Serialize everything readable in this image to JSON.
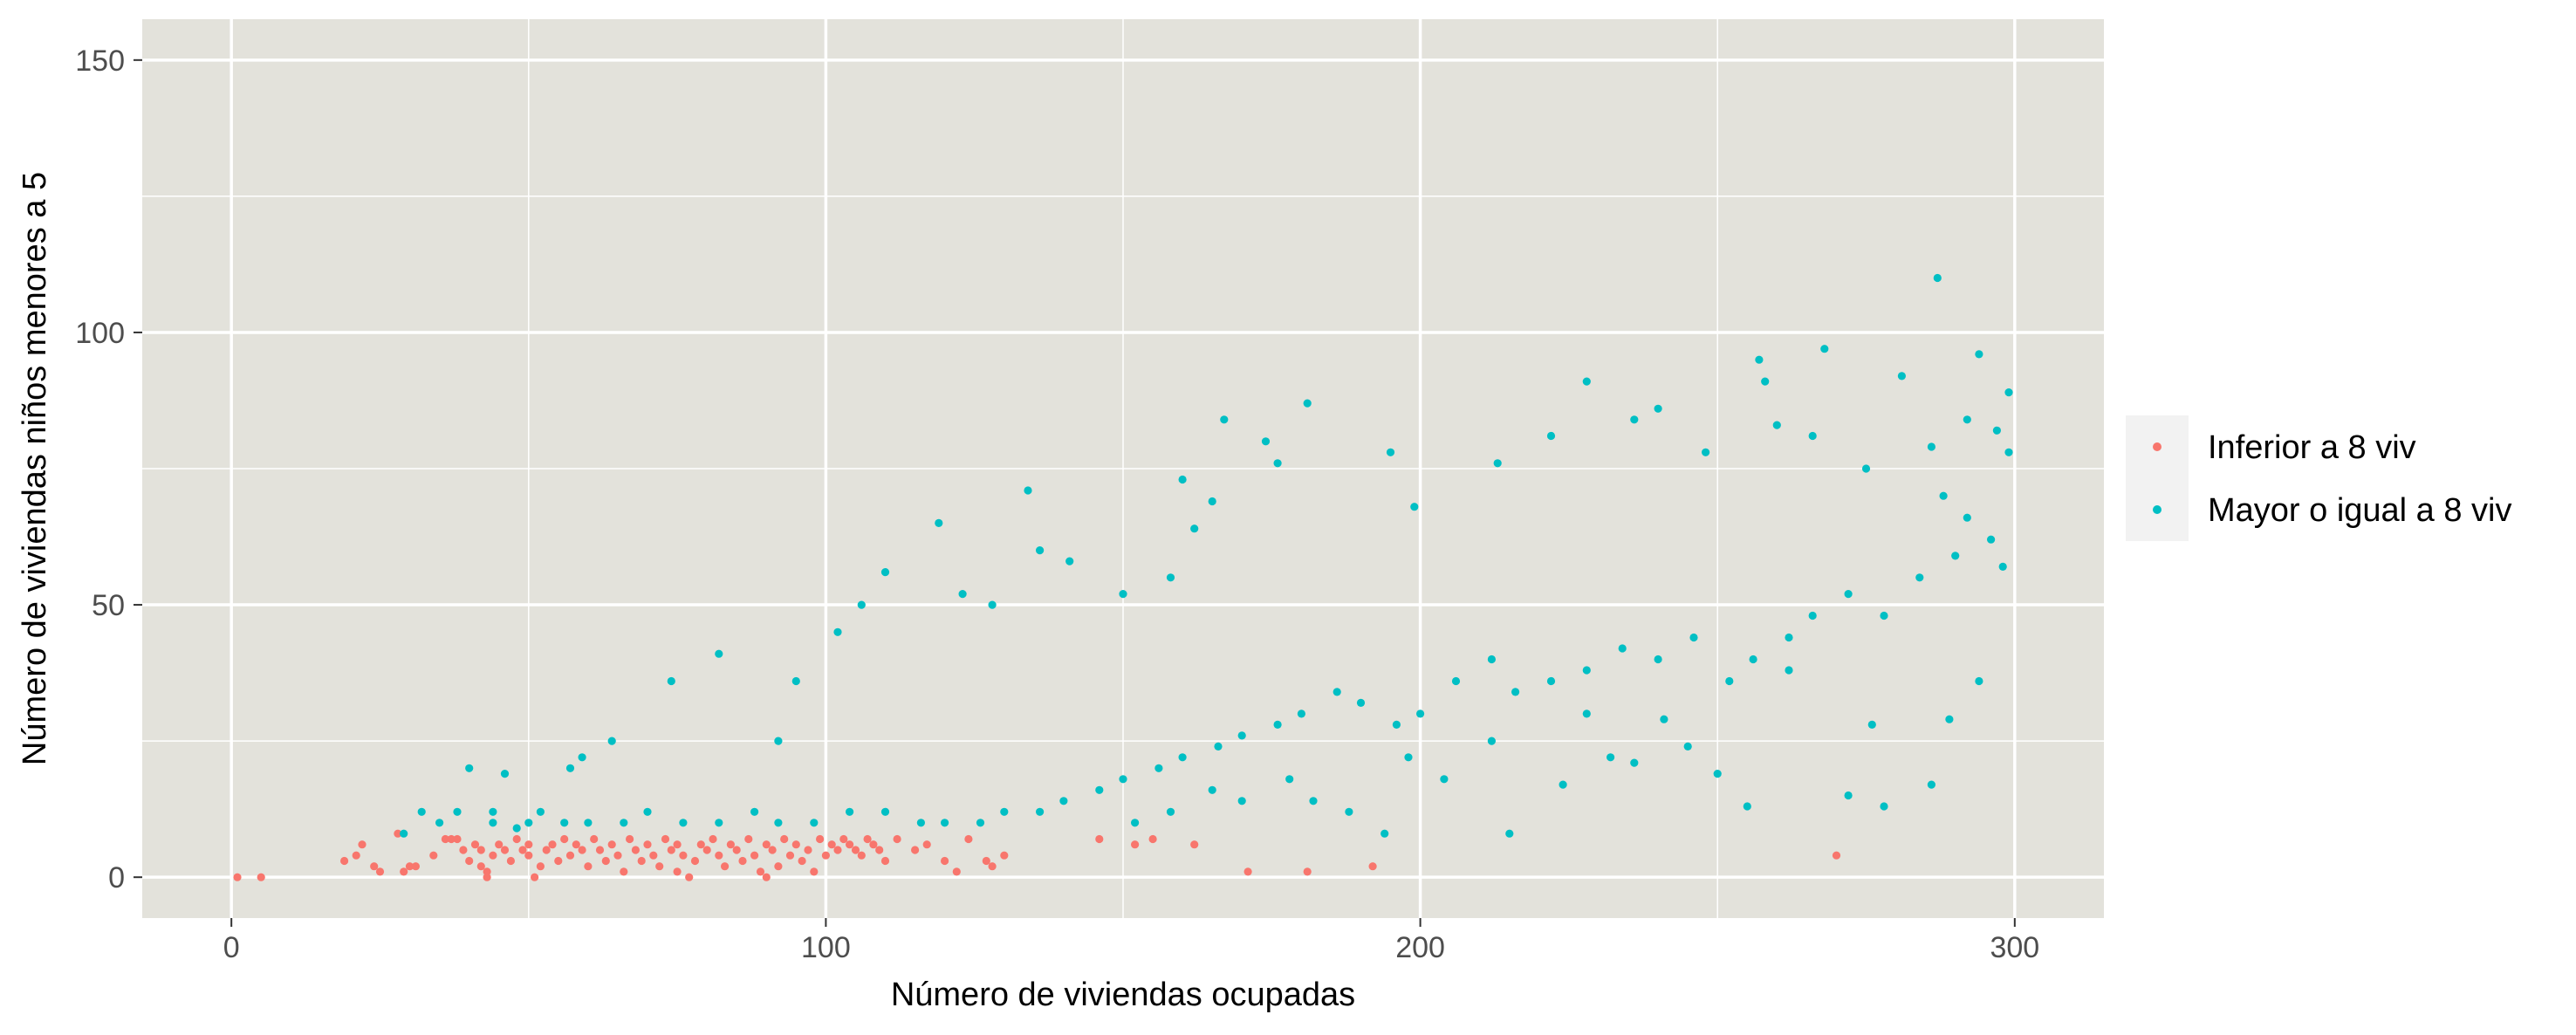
{
  "chart_data": {
    "type": "scatter",
    "title": "",
    "xlabel": "Número de viviendas ocupadas",
    "ylabel": "Número de viviendas niños menores a 5",
    "xlim": [
      -15,
      315
    ],
    "ylim": [
      -7.5,
      157.5
    ],
    "x_ticks": [
      0,
      100,
      200,
      300
    ],
    "y_ticks": [
      0,
      50,
      100,
      150
    ],
    "x_tick_labels": [
      "0",
      "100",
      "200",
      "300"
    ],
    "y_tick_labels": [
      "0",
      "50",
      "100",
      "150"
    ],
    "grid": true,
    "panel_background": "#e3e2db",
    "grid_color": "#ffffff",
    "legend_position": "right",
    "series": [
      {
        "name": "Inferior a 8 viv",
        "color": "#f8766d",
        "points": [
          [
            1,
            0
          ],
          [
            5,
            0
          ],
          [
            19,
            3
          ],
          [
            21,
            4
          ],
          [
            22,
            6
          ],
          [
            24,
            2
          ],
          [
            25,
            1
          ],
          [
            28,
            8
          ],
          [
            29,
            1
          ],
          [
            30,
            2
          ],
          [
            31,
            2
          ],
          [
            34,
            4
          ],
          [
            36,
            7
          ],
          [
            37,
            7
          ],
          [
            38,
            7
          ],
          [
            39,
            5
          ],
          [
            40,
            3
          ],
          [
            41,
            6
          ],
          [
            42,
            5
          ],
          [
            42,
            2
          ],
          [
            43,
            0
          ],
          [
            43,
            1
          ],
          [
            44,
            4
          ],
          [
            45,
            6
          ],
          [
            46,
            5
          ],
          [
            47,
            3
          ],
          [
            48,
            7
          ],
          [
            49,
            5
          ],
          [
            50,
            4
          ],
          [
            50,
            6
          ],
          [
            51,
            0
          ],
          [
            52,
            2
          ],
          [
            53,
            5
          ],
          [
            54,
            6
          ],
          [
            55,
            3
          ],
          [
            56,
            7
          ],
          [
            57,
            4
          ],
          [
            58,
            6
          ],
          [
            59,
            5
          ],
          [
            60,
            2
          ],
          [
            61,
            7
          ],
          [
            62,
            5
          ],
          [
            63,
            3
          ],
          [
            64,
            6
          ],
          [
            65,
            4
          ],
          [
            66,
            1
          ],
          [
            67,
            7
          ],
          [
            68,
            5
          ],
          [
            69,
            3
          ],
          [
            70,
            6
          ],
          [
            71,
            4
          ],
          [
            72,
            2
          ],
          [
            73,
            7
          ],
          [
            74,
            5
          ],
          [
            75,
            1
          ],
          [
            75,
            6
          ],
          [
            76,
            4
          ],
          [
            77,
            0
          ],
          [
            78,
            3
          ],
          [
            79,
            6
          ],
          [
            80,
            5
          ],
          [
            81,
            7
          ],
          [
            82,
            4
          ],
          [
            83,
            2
          ],
          [
            84,
            6
          ],
          [
            85,
            5
          ],
          [
            86,
            3
          ],
          [
            87,
            7
          ],
          [
            88,
            4
          ],
          [
            89,
            1
          ],
          [
            90,
            0
          ],
          [
            90,
            6
          ],
          [
            91,
            5
          ],
          [
            92,
            2
          ],
          [
            93,
            7
          ],
          [
            94,
            4
          ],
          [
            95,
            6
          ],
          [
            96,
            3
          ],
          [
            97,
            5
          ],
          [
            98,
            1
          ],
          [
            99,
            7
          ],
          [
            100,
            4
          ],
          [
            101,
            6
          ],
          [
            102,
            5
          ],
          [
            103,
            7
          ],
          [
            104,
            6
          ],
          [
            105,
            5
          ],
          [
            106,
            4
          ],
          [
            107,
            7
          ],
          [
            108,
            6
          ],
          [
            109,
            5
          ],
          [
            110,
            3
          ],
          [
            112,
            7
          ],
          [
            115,
            5
          ],
          [
            117,
            6
          ],
          [
            120,
            3
          ],
          [
            122,
            1
          ],
          [
            124,
            7
          ],
          [
            127,
            3
          ],
          [
            128,
            2
          ],
          [
            130,
            4
          ],
          [
            146,
            7
          ],
          [
            152,
            6
          ],
          [
            155,
            7
          ],
          [
            162,
            6
          ],
          [
            171,
            1
          ],
          [
            181,
            1
          ],
          [
            192,
            2
          ],
          [
            270,
            4
          ]
        ]
      },
      {
        "name": "Mayor o igual a 8 viv",
        "color": "#00bfc4",
        "points": [
          [
            29,
            8
          ],
          [
            32,
            12
          ],
          [
            35,
            10
          ],
          [
            38,
            12
          ],
          [
            40,
            20
          ],
          [
            44,
            12
          ],
          [
            46,
            19
          ],
          [
            48,
            9
          ],
          [
            52,
            12
          ],
          [
            57,
            20
          ],
          [
            59,
            22
          ],
          [
            64,
            25
          ],
          [
            74,
            36
          ],
          [
            82,
            41
          ],
          [
            92,
            25
          ],
          [
            95,
            36
          ],
          [
            102,
            45
          ],
          [
            106,
            50
          ],
          [
            110,
            56
          ],
          [
            119,
            65
          ],
          [
            123,
            52
          ],
          [
            128,
            50
          ],
          [
            134,
            71
          ],
          [
            136,
            60
          ],
          [
            141,
            58
          ],
          [
            150,
            52
          ],
          [
            158,
            55
          ],
          [
            160,
            73
          ],
          [
            162,
            64
          ],
          [
            165,
            69
          ],
          [
            167,
            84
          ],
          [
            174,
            80
          ],
          [
            176,
            76
          ],
          [
            181,
            87
          ],
          [
            195,
            78
          ],
          [
            199,
            68
          ],
          [
            213,
            76
          ],
          [
            222,
            81
          ],
          [
            228,
            91
          ],
          [
            236,
            84
          ],
          [
            240,
            86
          ],
          [
            248,
            78
          ],
          [
            257,
            95
          ],
          [
            258,
            91
          ],
          [
            260,
            83
          ],
          [
            266,
            81
          ],
          [
            268,
            97
          ],
          [
            275,
            75
          ],
          [
            281,
            92
          ],
          [
            286,
            79
          ],
          [
            287,
            110
          ],
          [
            292,
            84
          ],
          [
            294,
            96
          ],
          [
            297,
            82
          ],
          [
            299,
            89
          ],
          [
            299,
            78
          ],
          [
            288,
            70
          ],
          [
            292,
            66
          ],
          [
            296,
            62
          ],
          [
            298,
            57
          ],
          [
            290,
            59
          ],
          [
            284,
            55
          ],
          [
            278,
            48
          ],
          [
            272,
            52
          ],
          [
            266,
            48
          ],
          [
            262,
            44
          ],
          [
            256,
            40
          ],
          [
            252,
            36
          ],
          [
            246,
            44
          ],
          [
            240,
            40
          ],
          [
            234,
            42
          ],
          [
            228,
            38
          ],
          [
            222,
            36
          ],
          [
            216,
            34
          ],
          [
            212,
            40
          ],
          [
            206,
            36
          ],
          [
            200,
            30
          ],
          [
            196,
            28
          ],
          [
            190,
            32
          ],
          [
            186,
            34
          ],
          [
            180,
            30
          ],
          [
            176,
            28
          ],
          [
            170,
            26
          ],
          [
            166,
            24
          ],
          [
            160,
            22
          ],
          [
            156,
            20
          ],
          [
            150,
            18
          ],
          [
            146,
            16
          ],
          [
            140,
            14
          ],
          [
            136,
            12
          ],
          [
            130,
            12
          ],
          [
            126,
            10
          ],
          [
            120,
            10
          ],
          [
            116,
            10
          ],
          [
            110,
            12
          ],
          [
            104,
            12
          ],
          [
            98,
            10
          ],
          [
            92,
            10
          ],
          [
            88,
            12
          ],
          [
            82,
            10
          ],
          [
            76,
            10
          ],
          [
            70,
            12
          ],
          [
            66,
            10
          ],
          [
            60,
            10
          ],
          [
            56,
            10
          ],
          [
            50,
            10
          ],
          [
            44,
            10
          ],
          [
            255,
            13
          ],
          [
            250,
            19
          ],
          [
            272,
            15
          ],
          [
            278,
            13
          ],
          [
            286,
            17
          ],
          [
            289,
            29
          ],
          [
            294,
            36
          ],
          [
            276,
            28
          ],
          [
            262,
            38
          ],
          [
            245,
            24
          ],
          [
            232,
            22
          ],
          [
            224,
            17
          ],
          [
            215,
            8
          ],
          [
            236,
            21
          ],
          [
            241,
            29
          ],
          [
            228,
            30
          ],
          [
            212,
            25
          ],
          [
            204,
            18
          ],
          [
            198,
            22
          ],
          [
            194,
            8
          ],
          [
            188,
            12
          ],
          [
            182,
            14
          ],
          [
            178,
            18
          ],
          [
            170,
            14
          ],
          [
            165,
            16
          ],
          [
            158,
            12
          ],
          [
            152,
            10
          ]
        ]
      }
    ]
  }
}
